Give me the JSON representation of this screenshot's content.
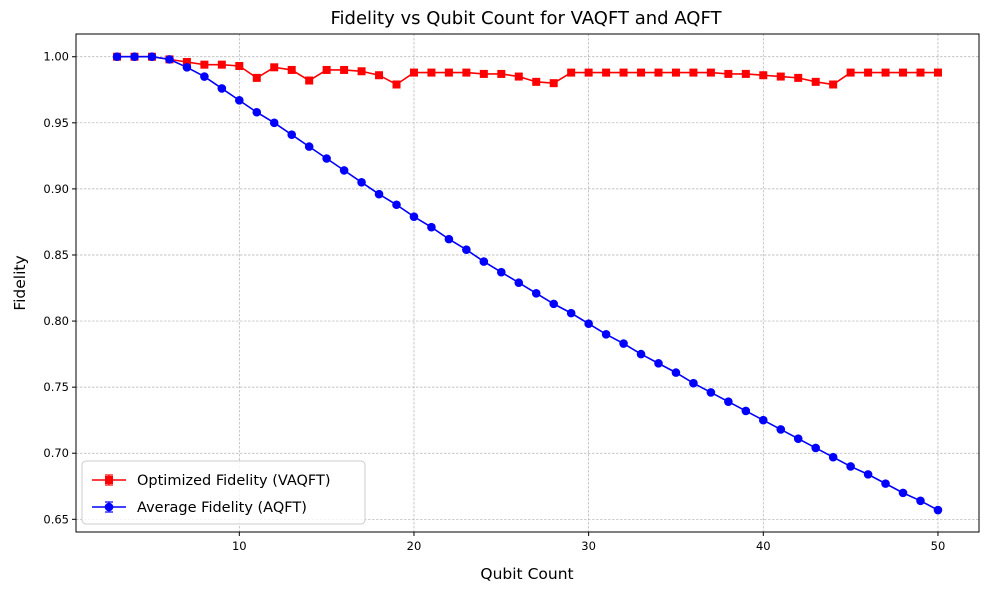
{
  "chart_data": {
    "type": "line",
    "title": "Fidelity vs Qubit Count for VAQFT and AQFT",
    "xlabel": "Qubit Count",
    "ylabel": "Fidelity",
    "xlim": [
      0.65,
      52.35
    ],
    "ylim": [
      0.6404,
      1.0172
    ],
    "xticks": [
      10,
      20,
      30,
      40,
      50
    ],
    "yticks": [
      0.65,
      0.7,
      0.75,
      0.8,
      0.85,
      0.9,
      0.95,
      1.0
    ],
    "xtick_labels": [
      "10",
      "20",
      "30",
      "40",
      "50"
    ],
    "ytick_labels": [
      "0.65",
      "0.70",
      "0.75",
      "0.80",
      "0.85",
      "0.90",
      "0.95",
      "1.00"
    ],
    "grid": true,
    "legend_position": "lower-left",
    "x": [
      3,
      4,
      5,
      6,
      7,
      8,
      9,
      10,
      11,
      12,
      13,
      14,
      15,
      16,
      17,
      18,
      19,
      20,
      21,
      22,
      23,
      24,
      25,
      26,
      27,
      28,
      29,
      30,
      31,
      32,
      33,
      34,
      35,
      36,
      37,
      38,
      39,
      40,
      41,
      42,
      43,
      44,
      45,
      46,
      47,
      48,
      49,
      50
    ],
    "series": [
      {
        "name": "Optimized Fidelity (VAQFT)",
        "color": "#ff0000",
        "marker": "square",
        "values": [
          1.0,
          1.0,
          1.0,
          0.998,
          0.996,
          0.994,
          0.994,
          0.993,
          0.984,
          0.992,
          0.99,
          0.982,
          0.99,
          0.99,
          0.989,
          0.986,
          0.979,
          0.988,
          0.988,
          0.988,
          0.988,
          0.987,
          0.987,
          0.985,
          0.981,
          0.98,
          0.988,
          0.988,
          0.988,
          0.988,
          0.988,
          0.988,
          0.988,
          0.988,
          0.988,
          0.987,
          0.987,
          0.986,
          0.985,
          0.984,
          0.981,
          0.979,
          0.988,
          0.988,
          0.988,
          0.988,
          0.988,
          0.988
        ]
      },
      {
        "name": "Average Fidelity (AQFT)",
        "color": "#0000ff",
        "marker": "circle",
        "values": [
          1.0,
          1.0,
          1.0,
          0.998,
          0.992,
          0.985,
          0.976,
          0.967,
          0.958,
          0.95,
          0.941,
          0.932,
          0.923,
          0.914,
          0.905,
          0.896,
          0.888,
          0.879,
          0.871,
          0.862,
          0.854,
          0.845,
          0.837,
          0.829,
          0.821,
          0.813,
          0.806,
          0.798,
          0.79,
          0.783,
          0.775,
          0.768,
          0.761,
          0.753,
          0.746,
          0.739,
          0.732,
          0.725,
          0.718,
          0.711,
          0.704,
          0.697,
          0.69,
          0.684,
          0.677,
          0.67,
          0.664,
          0.657
        ]
      }
    ]
  }
}
